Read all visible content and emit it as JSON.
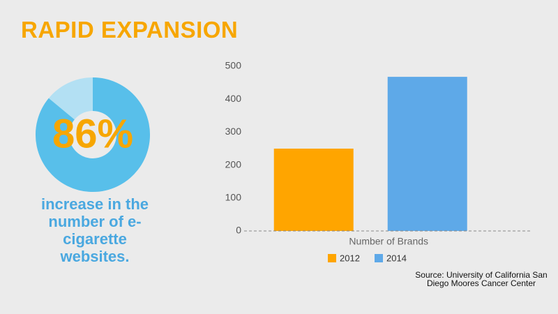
{
  "title": "RAPID EXPANSION",
  "chart_data": [
    {
      "type": "donut",
      "values": [
        86
      ],
      "value_labels": [
        "86%"
      ],
      "annotation": "increase in the number of e-cigarette websites.",
      "color": "#58bfea",
      "track_color": "#b3e0f3"
    },
    {
      "type": "bar",
      "categories": [
        "Number of Brands"
      ],
      "series": [
        {
          "name": "2012",
          "color": "#ffa500",
          "values": [
            250
          ]
        },
        {
          "name": "2014",
          "color": "#5ea9e8",
          "values": [
            468
          ]
        }
      ],
      "ylim": [
        0,
        500
      ],
      "yticks": [
        0,
        100,
        200,
        300,
        400,
        500
      ],
      "legend": "bottom"
    }
  ],
  "source": "Source: University of California San Diego Moores Cancer Center"
}
